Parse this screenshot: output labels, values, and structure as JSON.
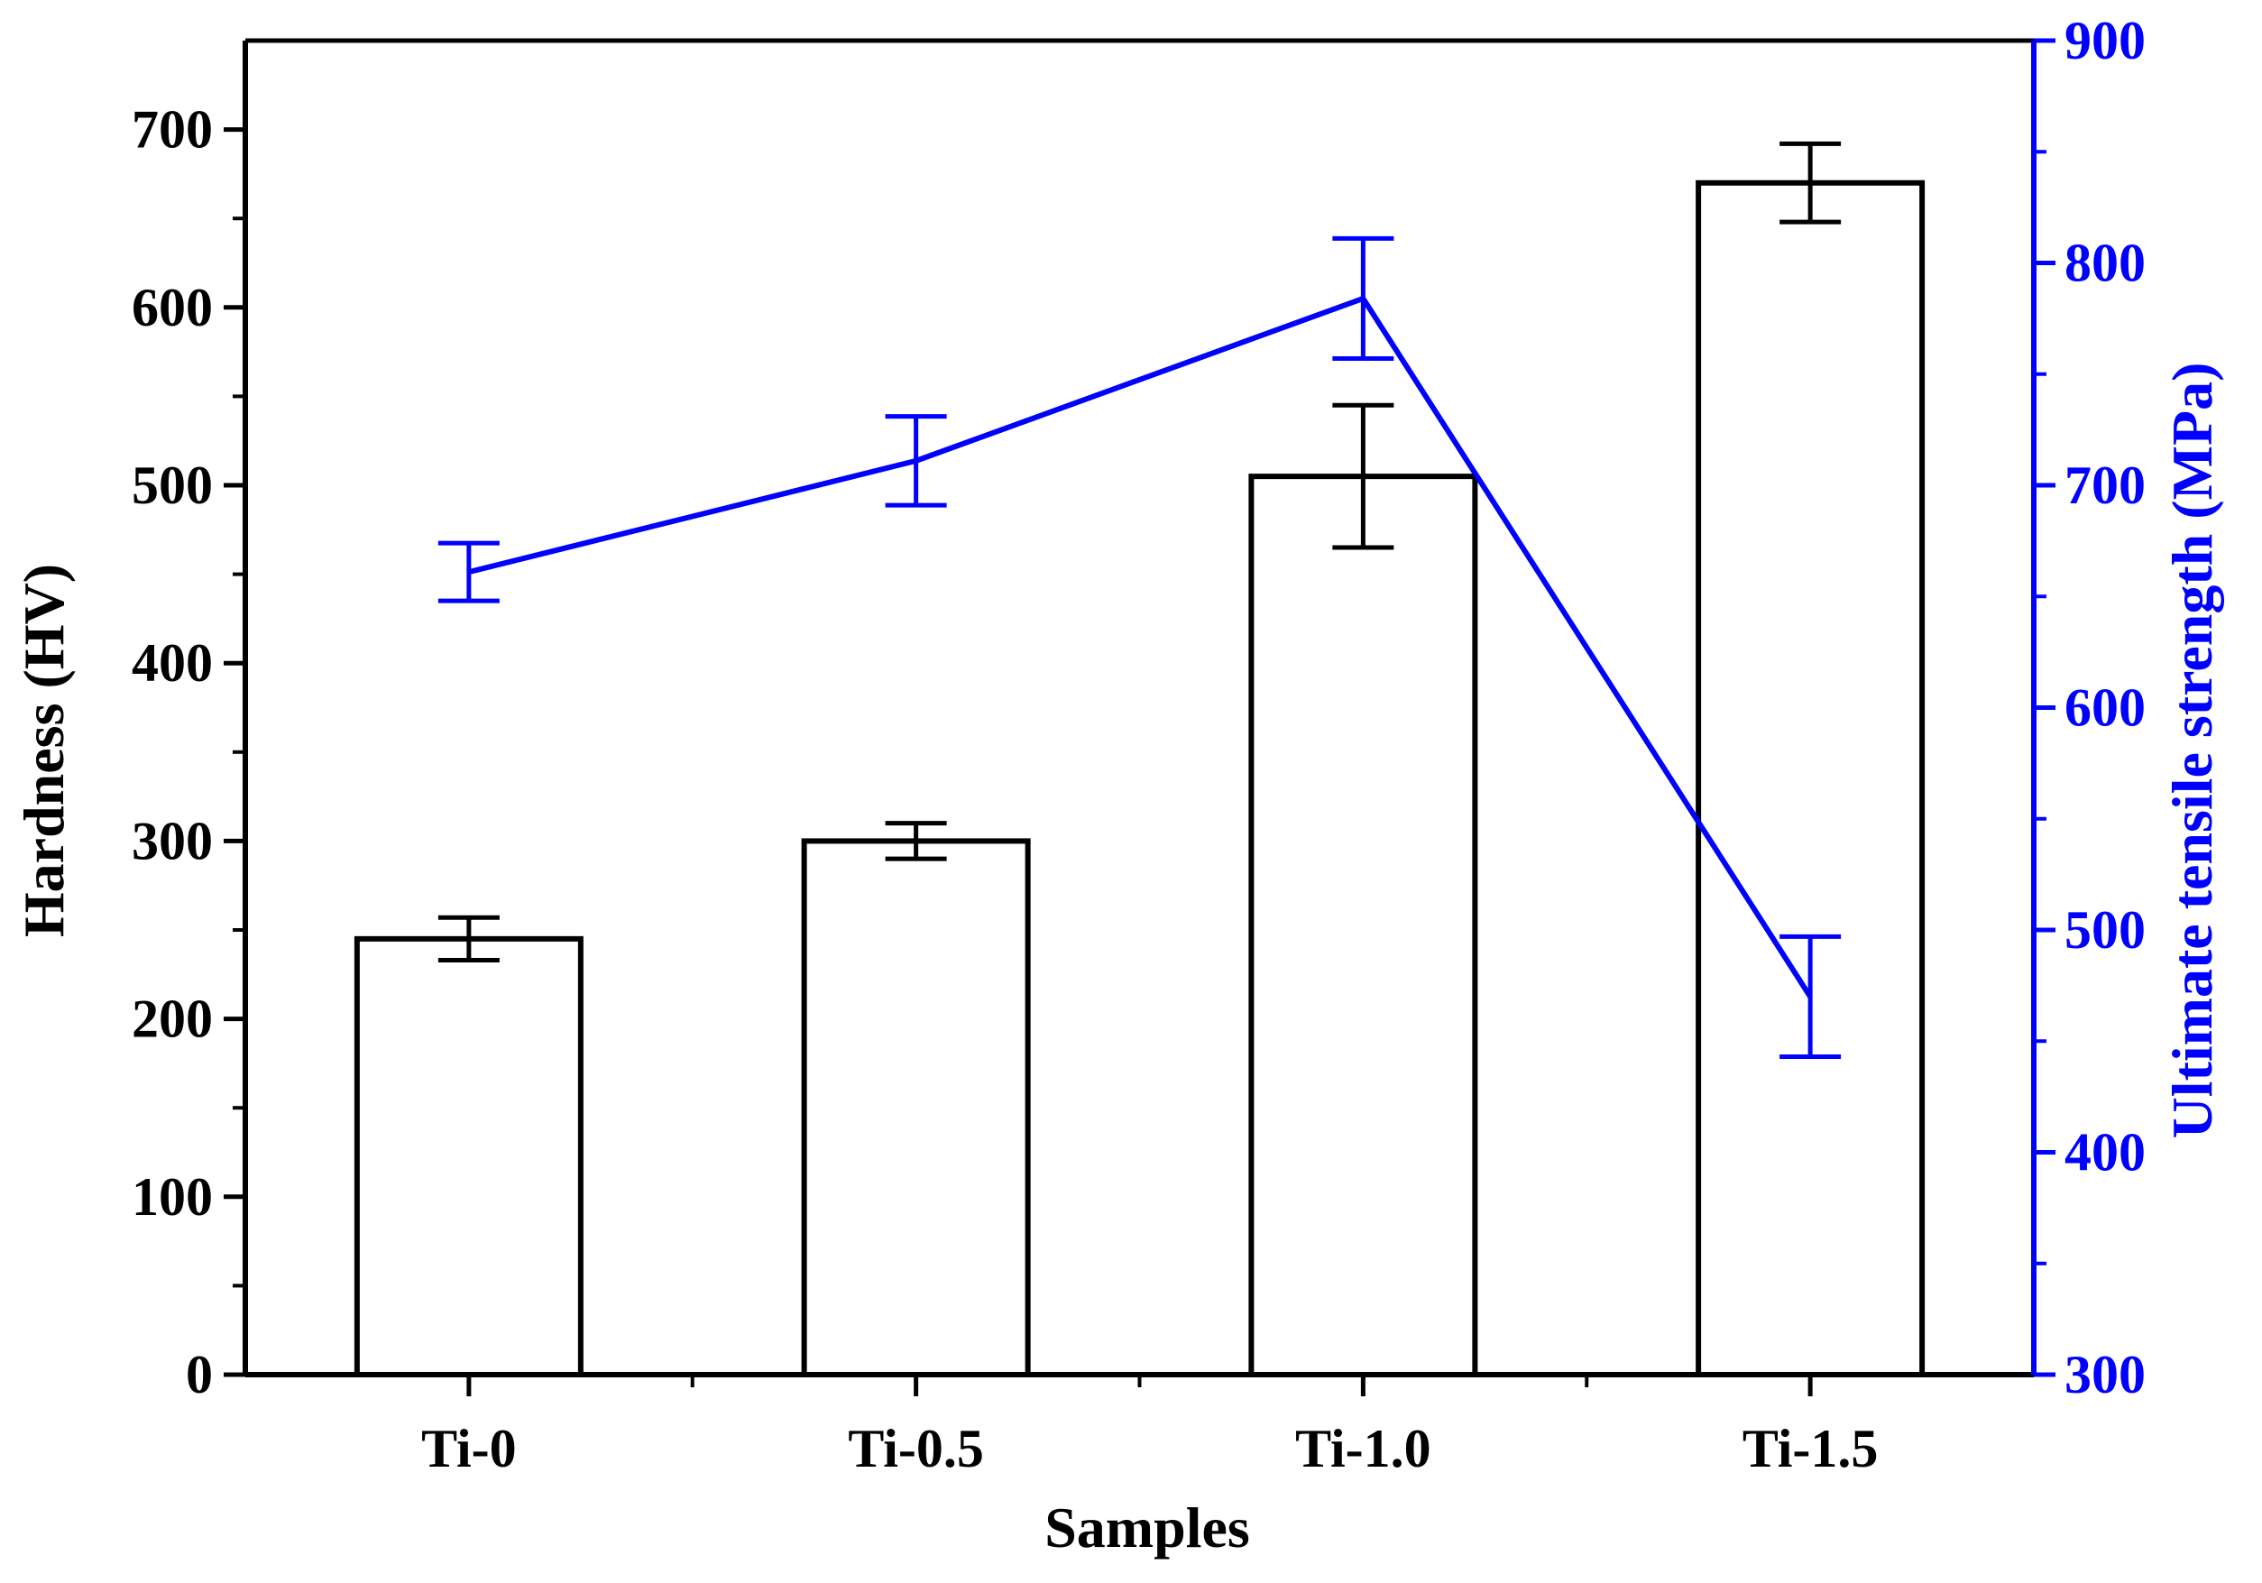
{
  "chart_data": {
    "type": "bar",
    "title": "",
    "categories": [
      "Ti-0",
      "Ti-0.5",
      "Ti-1.0",
      "Ti-1.5"
    ],
    "xlabel": "Samples",
    "series": [
      {
        "name": "Hardness",
        "kind": "bar",
        "axis": "left",
        "values": [
          245,
          300,
          505,
          670
        ],
        "errors": [
          12,
          10,
          40,
          22
        ]
      },
      {
        "name": "Ultimate tensile strength",
        "kind": "line",
        "axis": "right",
        "values": [
          661,
          711,
          784,
          470
        ],
        "errors": [
          13,
          20,
          27,
          27
        ]
      }
    ],
    "y_left": {
      "label": "Hardness (HV)",
      "ylim": [
        0,
        750
      ],
      "ticks": [
        "0",
        "100",
        "200",
        "300",
        "400",
        "500",
        "600",
        "700"
      ],
      "minor_step": 50
    },
    "y_right": {
      "label": "Ultimate tensile strength (MPa)",
      "ylim": [
        300,
        900
      ],
      "ticks": [
        "300",
        "400",
        "500",
        "600",
        "700",
        "800",
        "900"
      ],
      "minor_step": 50
    },
    "colors": {
      "bars": "#000000",
      "line": "#0000ff",
      "axis_left": "#000000",
      "axis_right": "#0000ff"
    },
    "grid": false
  }
}
